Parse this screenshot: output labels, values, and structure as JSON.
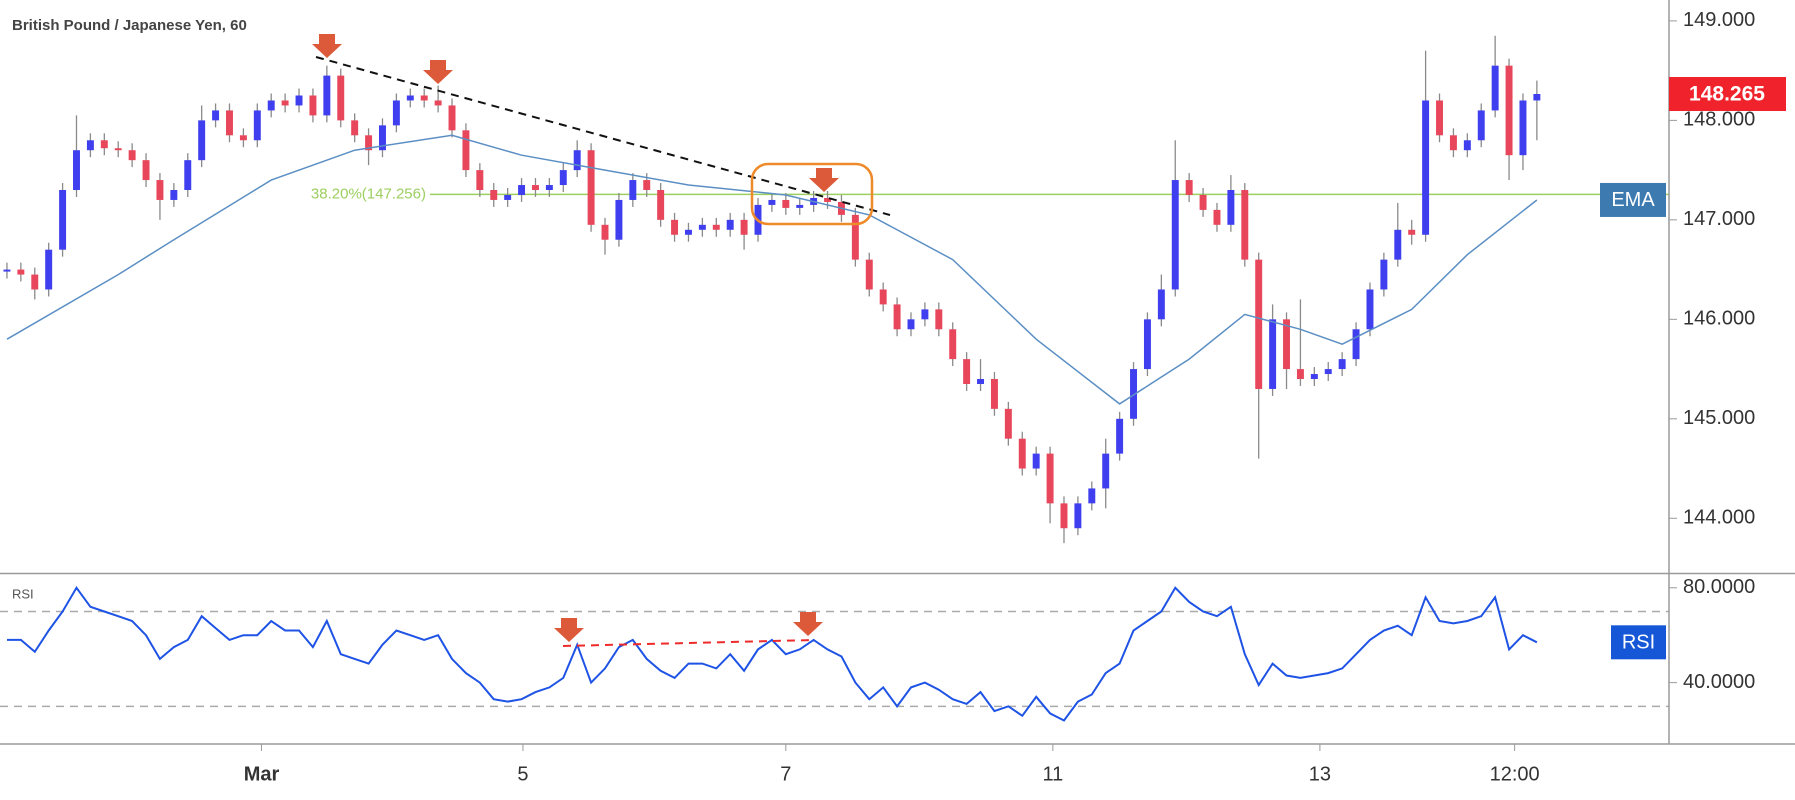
{
  "chart_data": [
    {
      "type": "candlestick",
      "title": "British Pound / Japanese Yen, 60",
      "up_color": "#3f3ff0",
      "down_color": "#e8475b",
      "wick_color": "#8a8a8a",
      "xlim": [
        -0.5,
        119.5
      ],
      "xticks": [
        {
          "value": 18.3,
          "label": "Mar"
        },
        {
          "value": 37.1,
          "label": "5"
        },
        {
          "value": 56,
          "label": "7"
        },
        {
          "value": 75.2,
          "label": "11"
        },
        {
          "value": 94.4,
          "label": "13"
        },
        {
          "value": 108.4,
          "label": "12:00"
        }
      ],
      "ylim": [
        143.46,
        149.21
      ],
      "yticks": [
        {
          "value": 144,
          "label": "144.000"
        },
        {
          "value": 145,
          "label": "145.000"
        },
        {
          "value": 146,
          "label": "146.000"
        },
        {
          "value": 147,
          "label": "147.000"
        },
        {
          "value": 148,
          "label": "148.000"
        },
        {
          "value": 149,
          "label": "149.000"
        }
      ],
      "grid": false,
      "ohlc": [
        [
          146.48,
          146.57,
          146.41,
          146.5
        ],
        [
          146.5,
          146.57,
          146.38,
          146.45
        ],
        [
          146.45,
          146.52,
          146.2,
          146.3
        ],
        [
          146.3,
          146.77,
          146.23,
          146.7
        ],
        [
          146.7,
          147.37,
          146.63,
          147.3
        ],
        [
          147.3,
          148.05,
          147.23,
          147.7
        ],
        [
          147.7,
          147.87,
          147.63,
          147.8
        ],
        [
          147.8,
          147.87,
          147.65,
          147.72
        ],
        [
          147.72,
          147.79,
          147.63,
          147.7
        ],
        [
          147.7,
          147.77,
          147.53,
          147.6
        ],
        [
          147.6,
          147.67,
          147.33,
          147.4
        ],
        [
          147.4,
          147.47,
          147.0,
          147.2
        ],
        [
          147.2,
          147.37,
          147.13,
          147.3
        ],
        [
          147.3,
          147.67,
          147.23,
          147.6
        ],
        [
          147.6,
          148.15,
          147.53,
          148.0
        ],
        [
          148.0,
          148.17,
          147.93,
          148.1
        ],
        [
          148.1,
          148.17,
          147.78,
          147.85
        ],
        [
          147.85,
          147.92,
          147.73,
          147.8
        ],
        [
          147.8,
          148.17,
          147.73,
          148.1
        ],
        [
          148.1,
          148.27,
          148.03,
          148.2
        ],
        [
          148.2,
          148.27,
          148.08,
          148.15
        ],
        [
          148.15,
          148.32,
          148.08,
          148.25
        ],
        [
          148.25,
          148.32,
          147.98,
          148.05
        ],
        [
          148.05,
          148.55,
          147.98,
          148.45
        ],
        [
          148.45,
          148.52,
          147.93,
          148.0
        ],
        [
          148.0,
          148.07,
          147.78,
          147.85
        ],
        [
          147.85,
          147.92,
          147.55,
          147.7
        ],
        [
          147.7,
          148.02,
          147.63,
          147.95
        ],
        [
          147.95,
          148.27,
          147.88,
          148.2
        ],
        [
          148.2,
          148.32,
          148.13,
          148.25
        ],
        [
          148.25,
          148.32,
          148.13,
          148.2
        ],
        [
          148.2,
          148.35,
          148.08,
          148.15
        ],
        [
          148.15,
          148.22,
          147.83,
          147.9
        ],
        [
          147.9,
          147.97,
          147.43,
          147.5
        ],
        [
          147.5,
          147.57,
          147.23,
          147.3
        ],
        [
          147.3,
          147.37,
          147.13,
          147.2
        ],
        [
          147.2,
          147.32,
          147.13,
          147.25
        ],
        [
          147.25,
          147.42,
          147.18,
          147.35
        ],
        [
          147.35,
          147.42,
          147.23,
          147.3
        ],
        [
          147.3,
          147.42,
          147.23,
          147.35
        ],
        [
          147.35,
          147.57,
          147.28,
          147.5
        ],
        [
          147.5,
          147.8,
          147.43,
          147.7
        ],
        [
          147.7,
          147.77,
          146.88,
          146.95
        ],
        [
          146.95,
          147.02,
          146.65,
          146.8
        ],
        [
          146.8,
          147.27,
          146.73,
          147.2
        ],
        [
          147.2,
          147.47,
          147.13,
          147.4
        ],
        [
          147.4,
          147.47,
          147.23,
          147.3
        ],
        [
          147.3,
          147.37,
          146.93,
          147.0
        ],
        [
          147.0,
          147.07,
          146.78,
          146.85
        ],
        [
          146.85,
          146.97,
          146.78,
          146.9
        ],
        [
          146.9,
          147.02,
          146.83,
          146.95
        ],
        [
          146.95,
          147.02,
          146.83,
          146.9
        ],
        [
          146.9,
          147.07,
          146.83,
          147.0
        ],
        [
          147.0,
          147.07,
          146.7,
          146.85
        ],
        [
          146.85,
          147.22,
          146.78,
          147.15
        ],
        [
          147.15,
          147.27,
          147.08,
          147.2
        ],
        [
          147.2,
          147.27,
          147.05,
          147.12
        ],
        [
          147.12,
          147.22,
          147.05,
          147.15
        ],
        [
          147.15,
          147.29,
          147.08,
          147.22
        ],
        [
          147.22,
          147.29,
          147.11,
          147.18
        ],
        [
          147.18,
          147.25,
          146.98,
          147.05
        ],
        [
          147.05,
          147.12,
          146.53,
          146.6
        ],
        [
          146.6,
          146.67,
          146.23,
          146.3
        ],
        [
          146.3,
          146.37,
          146.08,
          146.15
        ],
        [
          146.15,
          146.22,
          145.83,
          145.9
        ],
        [
          145.9,
          146.07,
          145.83,
          146.0
        ],
        [
          146.0,
          146.17,
          145.93,
          146.1
        ],
        [
          146.1,
          146.17,
          145.83,
          145.9
        ],
        [
          145.9,
          145.97,
          145.53,
          145.6
        ],
        [
          145.6,
          145.67,
          145.28,
          145.35
        ],
        [
          145.35,
          145.6,
          145.28,
          145.4
        ],
        [
          145.4,
          145.47,
          145.03,
          145.1
        ],
        [
          145.1,
          145.17,
          144.73,
          144.8
        ],
        [
          144.8,
          144.87,
          144.43,
          144.5
        ],
        [
          144.5,
          144.72,
          144.43,
          144.65
        ],
        [
          144.65,
          144.72,
          143.95,
          144.15
        ],
        [
          144.15,
          144.22,
          143.75,
          143.9
        ],
        [
          143.9,
          144.22,
          143.83,
          144.15
        ],
        [
          144.15,
          144.37,
          144.08,
          144.3
        ],
        [
          144.3,
          144.8,
          144.1,
          144.65
        ],
        [
          144.65,
          145.07,
          144.58,
          145.0
        ],
        [
          145.0,
          145.57,
          144.93,
          145.5
        ],
        [
          145.5,
          146.07,
          145.43,
          146.0
        ],
        [
          146.0,
          146.45,
          145.93,
          146.3
        ],
        [
          146.3,
          147.8,
          146.23,
          147.4
        ],
        [
          147.4,
          147.47,
          147.18,
          147.25
        ],
        [
          147.25,
          147.32,
          147.03,
          147.1
        ],
        [
          147.1,
          147.17,
          146.88,
          146.95
        ],
        [
          146.95,
          147.45,
          146.88,
          147.3
        ],
        [
          147.3,
          147.37,
          146.53,
          146.6
        ],
        [
          146.6,
          146.67,
          144.6,
          145.3
        ],
        [
          145.3,
          146.15,
          145.23,
          146.0
        ],
        [
          146.0,
          146.07,
          145.3,
          145.5
        ],
        [
          145.5,
          146.2,
          145.33,
          145.4
        ],
        [
          145.4,
          145.52,
          145.33,
          145.45
        ],
        [
          145.45,
          145.57,
          145.38,
          145.5
        ],
        [
          145.5,
          145.67,
          145.43,
          145.6
        ],
        [
          145.6,
          145.97,
          145.53,
          145.9
        ],
        [
          145.9,
          146.37,
          145.83,
          146.3
        ],
        [
          146.3,
          146.67,
          146.23,
          146.6
        ],
        [
          146.6,
          147.17,
          146.53,
          146.9
        ],
        [
          146.9,
          147.0,
          146.75,
          146.85
        ],
        [
          146.85,
          148.7,
          146.78,
          148.2
        ],
        [
          148.2,
          148.27,
          147.78,
          147.85
        ],
        [
          147.85,
          147.92,
          147.63,
          147.7
        ],
        [
          147.7,
          147.87,
          147.63,
          147.8
        ],
        [
          147.8,
          148.17,
          147.73,
          148.1
        ],
        [
          148.1,
          148.85,
          148.03,
          148.55
        ],
        [
          148.55,
          148.62,
          147.4,
          147.65
        ],
        [
          147.65,
          148.27,
          147.5,
          148.2
        ],
        [
          148.2,
          148.4,
          147.8,
          148.265
        ]
      ],
      "overlays": [
        {
          "type": "line",
          "name": "EMA",
          "color": "#5b8fc4",
          "x": [
            0,
            8,
            12,
            19,
            25,
            32,
            37,
            43,
            49,
            56,
            62,
            68,
            74,
            80,
            85,
            89,
            93,
            96,
            101,
            105,
            110
          ],
          "values": [
            145.8,
            146.45,
            146.8,
            147.4,
            147.7,
            147.85,
            147.65,
            147.5,
            147.35,
            147.25,
            147.05,
            146.6,
            145.8,
            145.15,
            145.6,
            146.05,
            145.9,
            145.75,
            146.1,
            146.65,
            147.2
          ]
        }
      ],
      "hline": {
        "value": 147.256,
        "label": "38.20%(147.256)",
        "color": "#9ccf5f"
      },
      "last_price": 148.265,
      "last_price_color": "#f0222b"
    },
    {
      "type": "line",
      "name": "RSI",
      "color": "#1e53e5",
      "ylim": [
        14.1,
        85.4
      ],
      "yticks": [
        {
          "value": 40,
          "label": "40.0000"
        },
        {
          "value": 80,
          "label": "80.0000"
        }
      ],
      "levels": [
        30,
        70
      ],
      "values": [
        58,
        58,
        53,
        62,
        70,
        80,
        72,
        70,
        68,
        66,
        60,
        50,
        55,
        58,
        68,
        63,
        58,
        60,
        60,
        66,
        62,
        62,
        55,
        66,
        52,
        50,
        48,
        56,
        62,
        60,
        58,
        60,
        50,
        44,
        40,
        33,
        32,
        33,
        36,
        38,
        42,
        56,
        40,
        46,
        55,
        58,
        50,
        45,
        42,
        48,
        48,
        46,
        52,
        45,
        54,
        58,
        52,
        54,
        58,
        54,
        51,
        40,
        33,
        38,
        30,
        38,
        40,
        37,
        33,
        31,
        36,
        28,
        30,
        26,
        34,
        27,
        24,
        32,
        35,
        44,
        48,
        62,
        66,
        70,
        80,
        74,
        70,
        68,
        72,
        52,
        39,
        48,
        43,
        42,
        43,
        44,
        46,
        52,
        58,
        62,
        64,
        60,
        76,
        66,
        65,
        66,
        68,
        76,
        54,
        60,
        57
      ]
    }
  ]
}
